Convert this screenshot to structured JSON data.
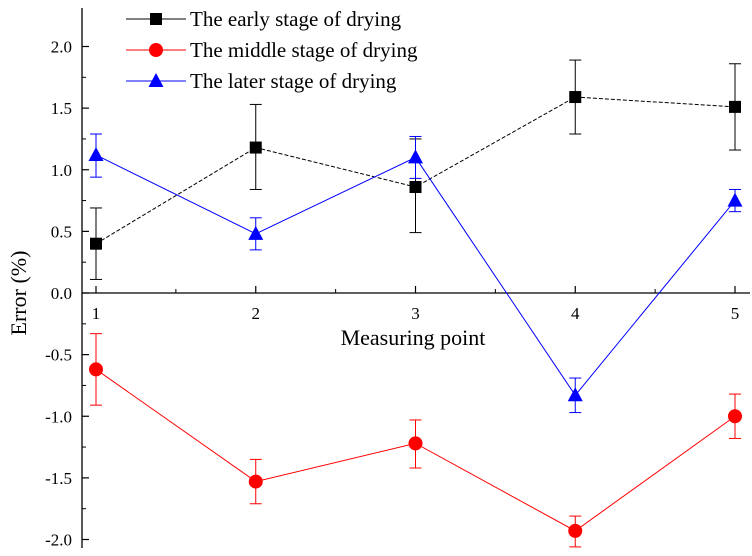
{
  "chart_data": {
    "type": "line",
    "xlabel": "Measuring point",
    "ylabel": "Error (%)",
    "xlim": [
      0.85,
      5.15
    ],
    "ylim": [
      -2.1,
      2.2
    ],
    "x": [
      1,
      2,
      3,
      4,
      5
    ],
    "x_ticks": [
      "1",
      "2",
      "3",
      "4",
      "5"
    ],
    "y_ticks": [
      "2.0",
      "1.5",
      "1.0",
      "0.5",
      "0.0",
      "-0.5",
      "-1.0",
      "-1.5",
      "-2.0"
    ],
    "grid": false,
    "legend_position": "top-left",
    "series": [
      {
        "name": "The early stage of drying",
        "color": "#000000",
        "marker": "square",
        "line_style": "dashed",
        "values": [
          0.4,
          1.18,
          0.86,
          1.59,
          1.51
        ],
        "err_low": [
          0.11,
          0.84,
          0.49,
          1.29,
          1.16
        ],
        "err_high": [
          0.69,
          1.53,
          1.25,
          1.89,
          1.86
        ]
      },
      {
        "name": "The middle stage of drying",
        "color": "#ff0000",
        "marker": "circle",
        "line_style": "solid",
        "values": [
          -0.62,
          -1.53,
          -1.22,
          -1.93,
          -1.0
        ],
        "err_low": [
          -0.91,
          -1.71,
          -1.42,
          -2.06,
          -1.18
        ],
        "err_high": [
          -0.33,
          -1.35,
          -1.03,
          -1.81,
          -0.82
        ]
      },
      {
        "name": "The later stage of drying",
        "color": "#0000ff",
        "marker": "triangle",
        "line_style": "solid",
        "values": [
          1.12,
          0.48,
          1.1,
          -0.83,
          0.75
        ],
        "err_low": [
          0.94,
          0.35,
          0.93,
          -0.97,
          0.66
        ],
        "err_high": [
          1.29,
          0.61,
          1.27,
          -0.69,
          0.84
        ]
      }
    ]
  }
}
